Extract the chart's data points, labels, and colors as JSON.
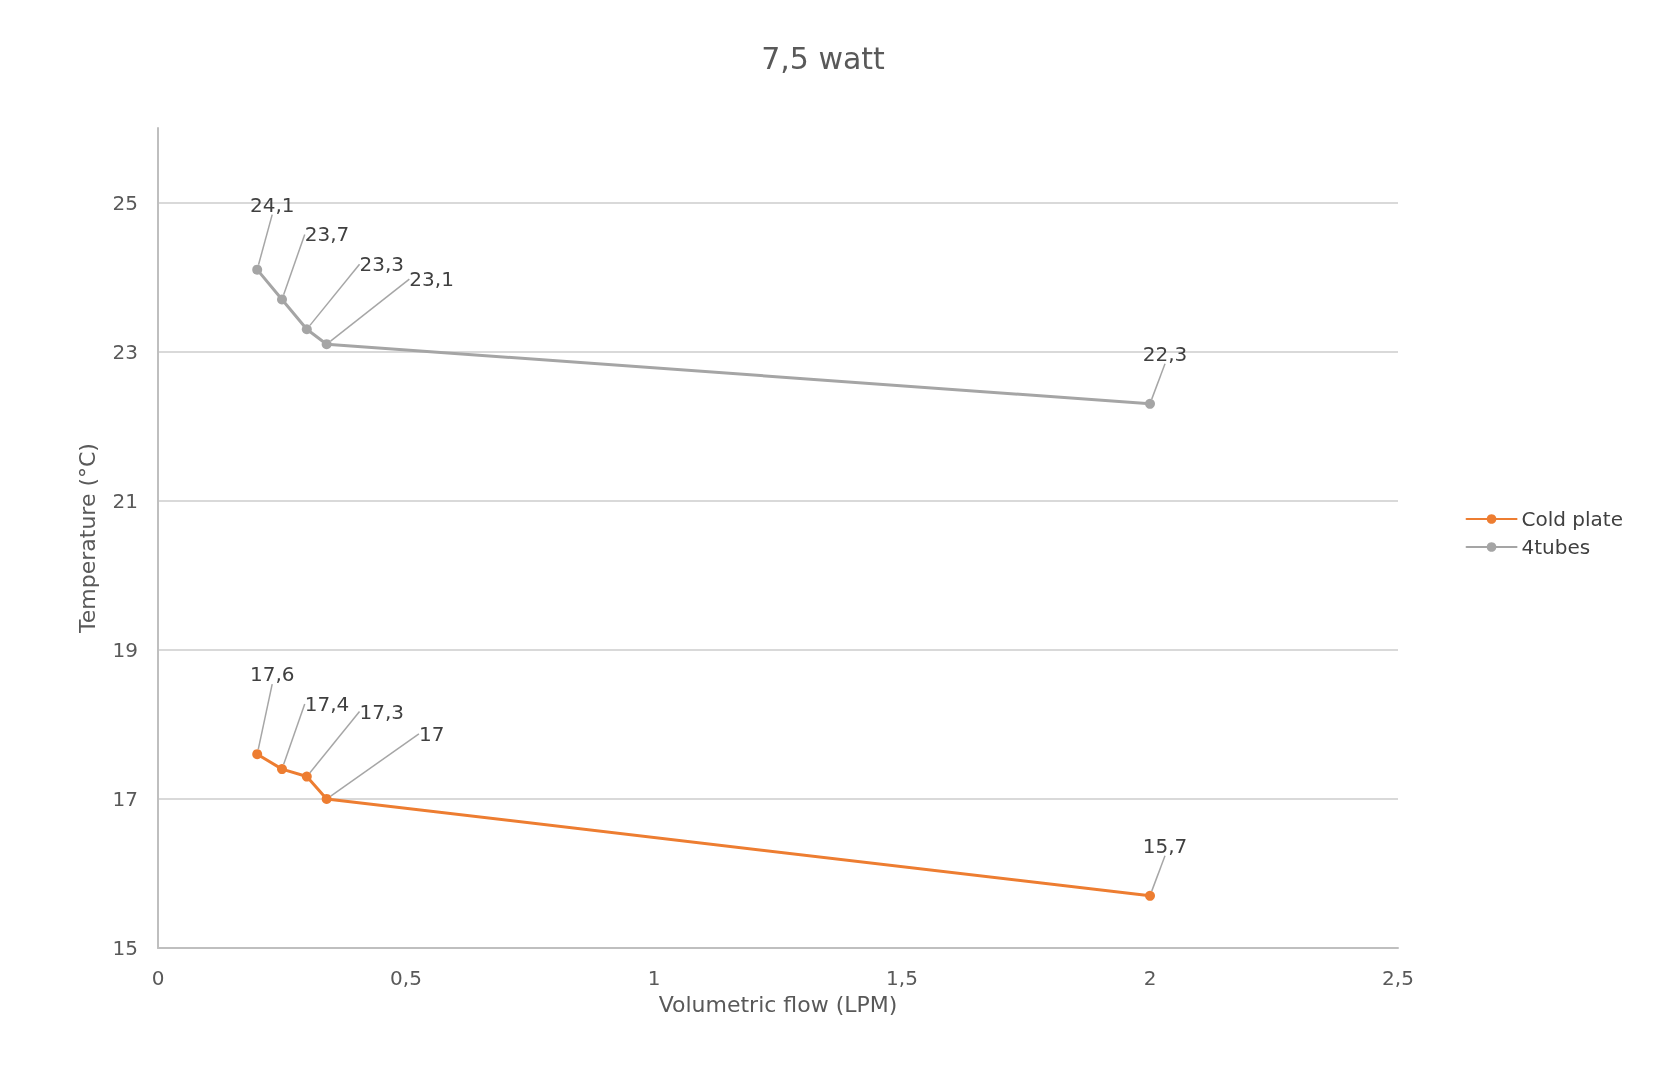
{
  "chart_data": {
    "type": "line",
    "title": "7,5 watt",
    "xlabel": "Volumetric flow (LPM)",
    "ylabel": "Temperature (°C)",
    "x": [
      0.2,
      0.25,
      0.3,
      0.34,
      2
    ],
    "series": [
      {
        "name": "Cold plate",
        "color": "#ed7d31",
        "values": [
          17.6,
          17.4,
          17.3,
          17,
          15.7
        ],
        "value_labels": [
          "17,6",
          "17,4",
          "17,3",
          "17",
          "15,7"
        ]
      },
      {
        "name": "4tubes",
        "color": "#a5a5a5",
        "values": [
          24.1,
          23.7,
          23.3,
          23.1,
          22.3
        ],
        "value_labels": [
          "24,1",
          "23,7",
          "23,3",
          "23,1",
          "22,3"
        ]
      }
    ],
    "xlim": [
      0,
      2.5
    ],
    "xticks": [
      0,
      {
        "value": 0.5,
        "label": "0,5"
      },
      1,
      {
        "value": 1.5,
        "label": "1,5"
      },
      2,
      {
        "value": 2.5,
        "label": "2,5"
      }
    ],
    "ylim": [
      15,
      26
    ],
    "yticks": [
      15,
      17,
      19,
      21,
      23,
      25
    ],
    "grid": "y",
    "legend": "right",
    "marker": "circle",
    "line_style": "solid"
  }
}
